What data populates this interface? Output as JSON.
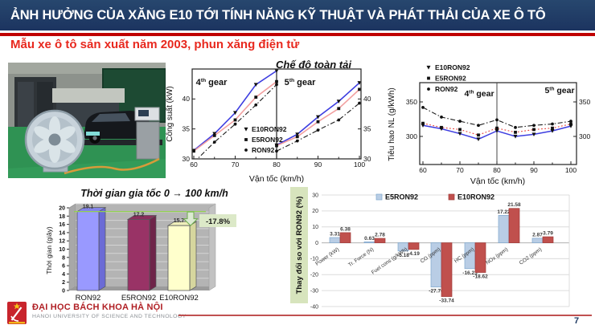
{
  "slide": {
    "title": "ẢNH HƯỞNG CỦA XĂNG E10 TỚI TÍNH NĂNG KỸ THUẬT VÀ PHÁT THẢI CỦA XE Ô TÔ",
    "subtitle": "Mẫu xe ô tô sản xuất năm 2003, phun xăng điện tử",
    "mode_label": "Chế độ toàn tải",
    "page_number": "7",
    "header_color": "#1F3A63",
    "accent_red": "#C00000"
  },
  "footer": {
    "university": "ĐẠI HỌC BÁCH KHOA HÀ NỘI",
    "university_en": "HANOI UNIVERSITY OF SCIENCE AND TECHNOLOGY"
  },
  "chart_data": [
    {
      "id": "power_chart",
      "type": "line",
      "ylabel": "Công suất (kW)",
      "xlabel": "Vận tốc (km/h)",
      "ylim": [
        30,
        45
      ],
      "yticks": [
        30,
        35,
        40
      ],
      "panels": [
        {
          "label": "4th gear",
          "xlim": [
            60,
            80
          ],
          "xticks": [
            60,
            70,
            80
          ]
        },
        {
          "label": "5th gear",
          "xlim": [
            80,
            100
          ],
          "xticks": [
            90,
            100
          ]
        }
      ],
      "x1": [
        60,
        65,
        70,
        75,
        80
      ],
      "x2": [
        80,
        85,
        90,
        95,
        100
      ],
      "series": [
        {
          "name": "E10RON92",
          "color": "#3D3DE0",
          "style": "solid",
          "marker": "triangle-down",
          "y1": [
            31.4,
            34.2,
            37.7,
            42.4,
            44.7
          ],
          "y2": [
            32.3,
            34.1,
            37.0,
            39.6,
            42.7
          ]
        },
        {
          "name": "E5RON92",
          "color": "#F2A0A0",
          "style": "solid",
          "marker": "square",
          "y1": [
            31.3,
            33.9,
            36.5,
            40.3,
            42.9
          ],
          "y2": [
            32.2,
            33.7,
            36.2,
            38.4,
            41.6
          ]
        },
        {
          "name": "RON92",
          "color": "#1a1a1a",
          "style": "dashdot",
          "marker": "circle",
          "y1": [
            29.4,
            32.8,
            35.8,
            39.0,
            42.4
          ],
          "y2": [
            31.3,
            33.0,
            34.8,
            36.5,
            39.3
          ]
        }
      ]
    },
    {
      "id": "fuel_chart",
      "type": "line",
      "ylabel": "Tiêu hao NL (g/kWh)",
      "xlabel": "Vận tốc (km/h)",
      "ylim": [
        260,
        376
      ],
      "yticks": [
        300,
        350
      ],
      "xlim": [
        60,
        100
      ],
      "xticks": [
        60,
        70,
        80,
        90,
        100
      ],
      "divider_x": 80,
      "gear_labels": [
        "4th gear",
        "5th gear"
      ],
      "x": [
        60,
        65,
        70,
        75,
        80,
        85,
        90,
        95,
        100
      ],
      "series": [
        {
          "name": "E10RON92",
          "color": "#3D3DE0",
          "style": "solid",
          "marker": "triangle-down",
          "y": [
            316,
            311,
            304,
            296,
            308,
            300,
            303,
            308,
            315
          ]
        },
        {
          "name": "E5RON92",
          "color": "#E8413C",
          "style": "dotted",
          "marker": "square",
          "y": [
            319,
            313,
            310,
            302,
            312,
            306,
            310,
            312,
            318
          ]
        },
        {
          "name": "RON92",
          "color": "#1a1a1a",
          "style": "dashdot",
          "marker": "circle",
          "y": [
            342,
            328,
            322,
            316,
            324,
            313,
            316,
            318,
            322
          ]
        }
      ]
    },
    {
      "id": "acceleration_chart",
      "type": "bar",
      "title": "Thời gian gia tốc 0 → 100 km/h",
      "ylabel": "Thời gian (giây)",
      "categories": [
        "RON92",
        "E5RON92",
        "E10RON92"
      ],
      "values": [
        19.1,
        17.2,
        15.7
      ],
      "value_labels": [
        "19.1",
        "17.2",
        "15.7"
      ],
      "bar_colors": [
        "#9999FF",
        "#993366",
        "#FFFFCC"
      ],
      "ylim": [
        0,
        20
      ],
      "ytick_step": 2,
      "annotation": {
        "text": "-17.8%",
        "box_color": "#DCE9C8",
        "arrow_fill": "#DCEAD2",
        "arrow_stroke": "#6FAE4E",
        "line_color": "#92D050"
      }
    },
    {
      "id": "change_vs_ron92_chart",
      "type": "bar",
      "ylabel": "Thay đổi so với RON92 (%)",
      "ylabel_bg": "#D7E4BD",
      "categories": [
        "Power (kW)",
        "Tr. Force (N)",
        "Fuel cons (g/kWh)",
        "CO (ppm)",
        "HC (ppm)",
        "NOx (ppm)",
        "CO2 (ppm)"
      ],
      "series": [
        {
          "name": "E5RON92",
          "color": "#B9CDE5",
          "border": "#7FA7CE",
          "values": [
            3.31,
            0.63,
            -5.18,
            -27.76,
            -16.23,
            17.22,
            2.87
          ]
        },
        {
          "name": "E10RON92",
          "color": "#C0504D",
          "border": "#A03B38",
          "values": [
            6.38,
            2.78,
            -4.19,
            -33.74,
            -18.62,
            21.58,
            3.79
          ]
        }
      ],
      "ylim": [
        -40,
        30
      ],
      "ytick_step": 10
    }
  ]
}
